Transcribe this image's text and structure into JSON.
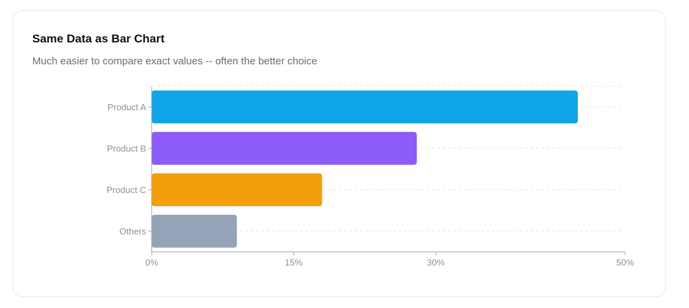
{
  "card": {
    "title": "Same Data as Bar Chart",
    "subtitle": "Much easier to compare exact values -- often the better choice"
  },
  "chart_data": {
    "type": "bar",
    "orientation": "horizontal",
    "title": "",
    "xlabel": "",
    "ylabel": "",
    "categories": [
      "Product A",
      "Product B",
      "Product C",
      "Others"
    ],
    "values": [
      45,
      28,
      18,
      9
    ],
    "colors": [
      "#0ea5e9",
      "#8b5cf6",
      "#f59e0b",
      "#94a3b8"
    ],
    "xlim": [
      0,
      50
    ],
    "x_ticks": [
      0,
      15,
      30,
      50
    ],
    "x_tick_labels": [
      "0%",
      "15%",
      "30%",
      "50%"
    ],
    "grid": "horizontal dashed",
    "legend": "none"
  }
}
